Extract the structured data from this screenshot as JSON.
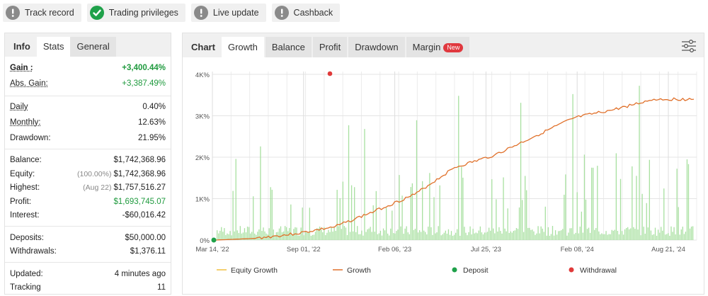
{
  "badges": [
    {
      "label": "Track record",
      "icon": "exclamation-icon",
      "color": "#8a8a8a"
    },
    {
      "label": "Trading privileges",
      "icon": "check-icon",
      "color": "#1fa14a"
    },
    {
      "label": "Live update",
      "icon": "exclamation-icon",
      "color": "#8a8a8a"
    },
    {
      "label": "Cashback",
      "icon": "exclamation-icon",
      "color": "#8a8a8a"
    }
  ],
  "left_tabs": {
    "info": "Info",
    "stats": "Stats",
    "general": "General"
  },
  "stats": {
    "gain_label": "Gain :",
    "gain_value": "+3,400.44%",
    "abs_gain_label": "Abs. Gain:",
    "abs_gain_value": "+3,387.49%",
    "daily_label": "Daily",
    "daily_value": "0.40%",
    "monthly_label": "Monthly:",
    "monthly_value": "12.63%",
    "drawdown_label": "Drawdown:",
    "drawdown_value": "21.95%",
    "balance_label": "Balance:",
    "balance_value": "$1,742,368.96",
    "equity_label": "Equity:",
    "equity_pct": "(100.00%)",
    "equity_value": "$1,742,368.96",
    "highest_label": "Highest:",
    "highest_date": "(Aug 22)",
    "highest_value": "$1,757,516.27",
    "profit_label": "Profit:",
    "profit_value": "$1,693,745.07",
    "interest_label": "Interest:",
    "interest_value": "-$60,016.42",
    "deposits_label": "Deposits:",
    "deposits_value": "$50,000.00",
    "withdrawals_label": "Withdrawals:",
    "withdrawals_value": "$1,376.11",
    "updated_label": "Updated:",
    "updated_value": "4 minutes ago",
    "tracking_label": "Tracking",
    "tracking_value": "11"
  },
  "right_tabs": {
    "chart": "Chart",
    "growth": "Growth",
    "balance": "Balance",
    "profit": "Profit",
    "drawdown": "Drawdown",
    "margin": "Margin",
    "new_badge": "New"
  },
  "colors": {
    "growth_line": "#e0702a",
    "equity_line": "#f0c040",
    "bars": "#a8e0a0",
    "deposit": "#1fa14a",
    "withdrawal": "#e03a3a",
    "grid": "#e4e4e4"
  },
  "chart_data": {
    "type": "line",
    "title": "",
    "y_ticks": [
      "0%",
      "1K%",
      "2K%",
      "3K%",
      "4K%"
    ],
    "ylim": [
      0,
      4000
    ],
    "x_ticks": [
      "Mar 14, '22",
      "Sep 01, '22",
      "Feb 06, '23",
      "Jul 25, '23",
      "Feb 08, '24",
      "Aug 21, '24"
    ],
    "legend": {
      "equity_growth": "Equity Growth",
      "growth": "Growth",
      "deposit": "Deposit",
      "withdrawal": "Withdrawal"
    },
    "series": [
      {
        "name": "Growth",
        "x": [
          "Mar 14, '22",
          "May '22",
          "Jul '22",
          "Sep 01, '22",
          "Nov '22",
          "Feb 06, '23",
          "Apr '23",
          "Jul 25, '23",
          "Oct '23",
          "Feb 08, '24",
          "May '24",
          "Aug 21, '24",
          "Sep '24"
        ],
        "values": [
          0,
          40,
          150,
          320,
          700,
          1100,
          1750,
          2050,
          2500,
          2950,
          3150,
          3400,
          3400
        ]
      }
    ],
    "deposit_point": {
      "x": "Mar 14, '22",
      "value": 0
    },
    "withdrawal_point": {
      "x": "Jul '22",
      "value": 4000
    }
  }
}
